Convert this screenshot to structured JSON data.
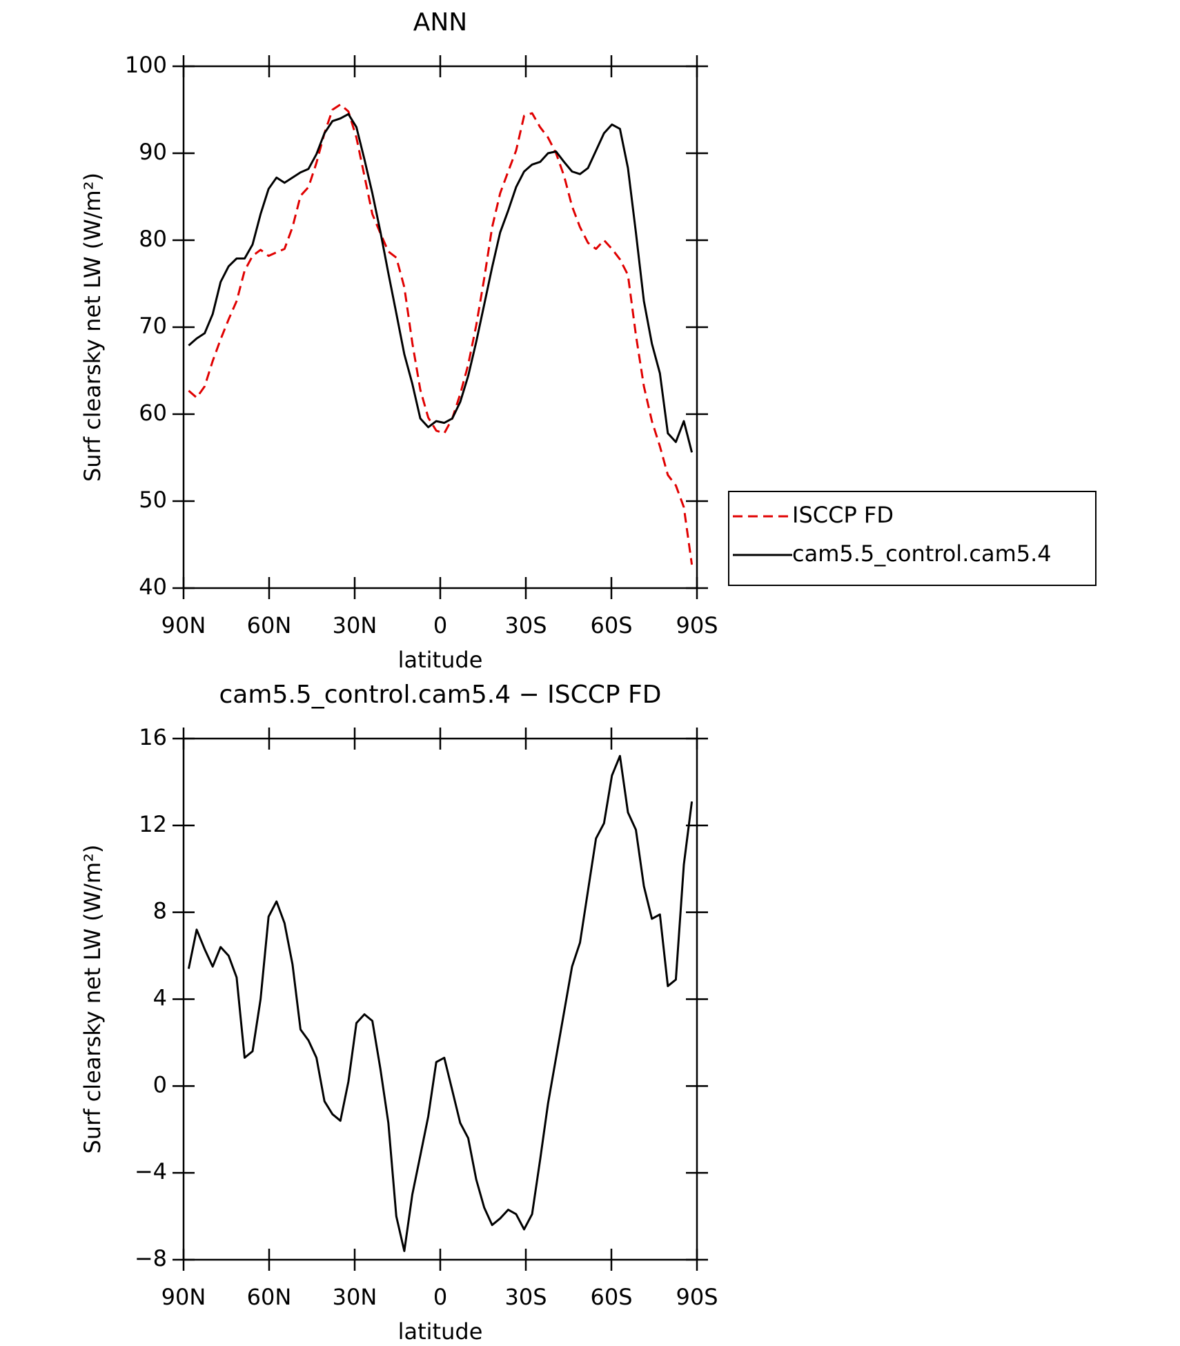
{
  "chart_data": [
    {
      "type": "line",
      "title": "ANN",
      "xlabel": "latitude",
      "ylabel": "Surf clearsky net LW (W/m²)",
      "x": [
        88.2,
        85.4,
        82.6,
        79.8,
        77,
        74.2,
        71.4,
        68.6,
        65.8,
        63,
        60.2,
        57.4,
        54.6,
        51.8,
        49,
        46.2,
        43.4,
        40.6,
        37.8,
        35,
        32.2,
        29.4,
        26.6,
        23.8,
        21,
        18.2,
        15.4,
        12.6,
        9.8,
        7,
        4.2,
        1.4,
        -1.4,
        -4.2,
        -7,
        -9.8,
        -12.6,
        -15.4,
        -18.2,
        -21,
        -23.8,
        -26.6,
        -29.4,
        -32.2,
        -35,
        -37.8,
        -40.6,
        -43.4,
        -46.2,
        -49,
        -51.8,
        -54.6,
        -57.4,
        -60.2,
        -63,
        -65.8,
        -68.6,
        -71.4,
        -74.2,
        -77,
        -79.8,
        -82.6,
        -85.4,
        -88.2
      ],
      "xlim": [
        90,
        -90
      ],
      "xticks": [
        {
          "value": 90,
          "label": "90N"
        },
        {
          "value": 60,
          "label": "60N"
        },
        {
          "value": 30,
          "label": "30N"
        },
        0,
        {
          "value": -30,
          "label": "30S"
        },
        {
          "value": -60,
          "label": "60S"
        },
        {
          "value": -90,
          "label": "90S"
        }
      ],
      "ylim": [
        40,
        100
      ],
      "yticks": [
        40,
        50,
        60,
        70,
        80,
        90,
        100
      ],
      "legend": "outside-right",
      "series": [
        {
          "name": "ISCCP FD",
          "color": "#e00000",
          "style": "dashed",
          "values": [
            62.7,
            61.9,
            63.2,
            66.1,
            68.6,
            70.9,
            73.0,
            76.5,
            78.2,
            78.9,
            78.2,
            78.6,
            79.0,
            81.5,
            85.1,
            86.1,
            88.9,
            92.3,
            95.0,
            95.6,
            94.8,
            91.8,
            87.4,
            83.0,
            80.8,
            78.7,
            78.0,
            74.6,
            68.2,
            62.8,
            59.6,
            58.1,
            57.8,
            59.5,
            62.3,
            65.7,
            70.2,
            75.6,
            81.5,
            85.4,
            87.9,
            90.3,
            94.3,
            94.6,
            93.0,
            91.8,
            90.0,
            87.4,
            83.9,
            81.5,
            79.7,
            79.0,
            80.0,
            79.0,
            77.8,
            76.0,
            69.1,
            63.2,
            59.2,
            56.3,
            53.0,
            51.8,
            49.3,
            42.7
          ]
        },
        {
          "name": "cam5.5_control.cam5.4",
          "color": "#000000",
          "style": "solid",
          "values": [
            67.9,
            68.7,
            69.3,
            71.5,
            75.2,
            77.0,
            77.9,
            77.9,
            79.5,
            83.0,
            85.9,
            87.2,
            86.6,
            87.2,
            87.8,
            88.2,
            89.9,
            92.3,
            93.7,
            94.0,
            94.5,
            93.0,
            89.3,
            85.4,
            81.0,
            76.2,
            71.6,
            66.9,
            63.5,
            59.5,
            58.5,
            59.2,
            59.0,
            59.5,
            61.4,
            64.4,
            68.3,
            72.6,
            76.9,
            80.9,
            83.4,
            86.1,
            87.9,
            88.7,
            89.0,
            90.0,
            90.2,
            89.0,
            87.9,
            87.6,
            88.3,
            90.3,
            92.3,
            93.3,
            92.8,
            88.3,
            80.9,
            73.0,
            68.1,
            64.7,
            57.8,
            56.8,
            59.2,
            55.6
          ]
        }
      ]
    },
    {
      "type": "line",
      "title": "cam5.5_control.cam5.4 − ISCCP FD",
      "xlabel": "latitude",
      "ylabel": "Surf clearsky net LW (W/m²)",
      "x": [
        88.2,
        85.4,
        82.6,
        79.8,
        77,
        74.2,
        71.4,
        68.6,
        65.8,
        63,
        60.2,
        57.4,
        54.6,
        51.8,
        49,
        46.2,
        43.4,
        40.6,
        37.8,
        35,
        32.2,
        29.4,
        26.6,
        23.8,
        21,
        18.2,
        15.4,
        12.6,
        9.8,
        7,
        4.2,
        1.4,
        -1.4,
        -4.2,
        -7,
        -9.8,
        -12.6,
        -15.4,
        -18.2,
        -21,
        -23.8,
        -26.6,
        -29.4,
        -32.2,
        -35,
        -37.8,
        -40.6,
        -43.4,
        -46.2,
        -49,
        -51.8,
        -54.6,
        -57.4,
        -60.2,
        -63,
        -65.8,
        -68.6,
        -71.4,
        -74.2,
        -77,
        -79.8,
        -82.6,
        -85.4,
        -88.2
      ],
      "xlim": [
        90,
        -90
      ],
      "xticks": [
        {
          "value": 90,
          "label": "90N"
        },
        {
          "value": 60,
          "label": "60N"
        },
        {
          "value": 30,
          "label": "30N"
        },
        0,
        {
          "value": -30,
          "label": "30S"
        },
        {
          "value": -60,
          "label": "60S"
        },
        {
          "value": -90,
          "label": "90S"
        }
      ],
      "ylim": [
        -8,
        16
      ],
      "yticks": [
        {
          "value": -8,
          "label": "−8"
        },
        {
          "value": -4,
          "label": "−4"
        },
        0,
        4,
        8,
        12,
        16
      ],
      "series": [
        {
          "color": "#000000",
          "style": "solid",
          "values": [
            5.4,
            7.2,
            6.3,
            5.5,
            6.4,
            6.0,
            5.0,
            1.3,
            1.6,
            4.0,
            7.8,
            8.5,
            7.5,
            5.6,
            2.6,
            2.1,
            1.3,
            -0.7,
            -1.3,
            -1.6,
            0.2,
            2.9,
            3.3,
            3.0,
            0.8,
            -1.7,
            -6.0,
            -7.6,
            -5.0,
            -3.2,
            -1.4,
            1.1,
            1.3,
            -0.2,
            -1.7,
            -2.4,
            -4.3,
            -5.6,
            -6.4,
            -6.1,
            -5.7,
            -5.9,
            -6.6,
            -5.9,
            -3.4,
            -0.8,
            1.3,
            3.4,
            5.5,
            6.6,
            9.0,
            11.4,
            12.1,
            14.3,
            15.2,
            12.6,
            11.8,
            9.2,
            7.7,
            7.9,
            4.6,
            4.9,
            10.2,
            13.1
          ]
        }
      ]
    }
  ]
}
